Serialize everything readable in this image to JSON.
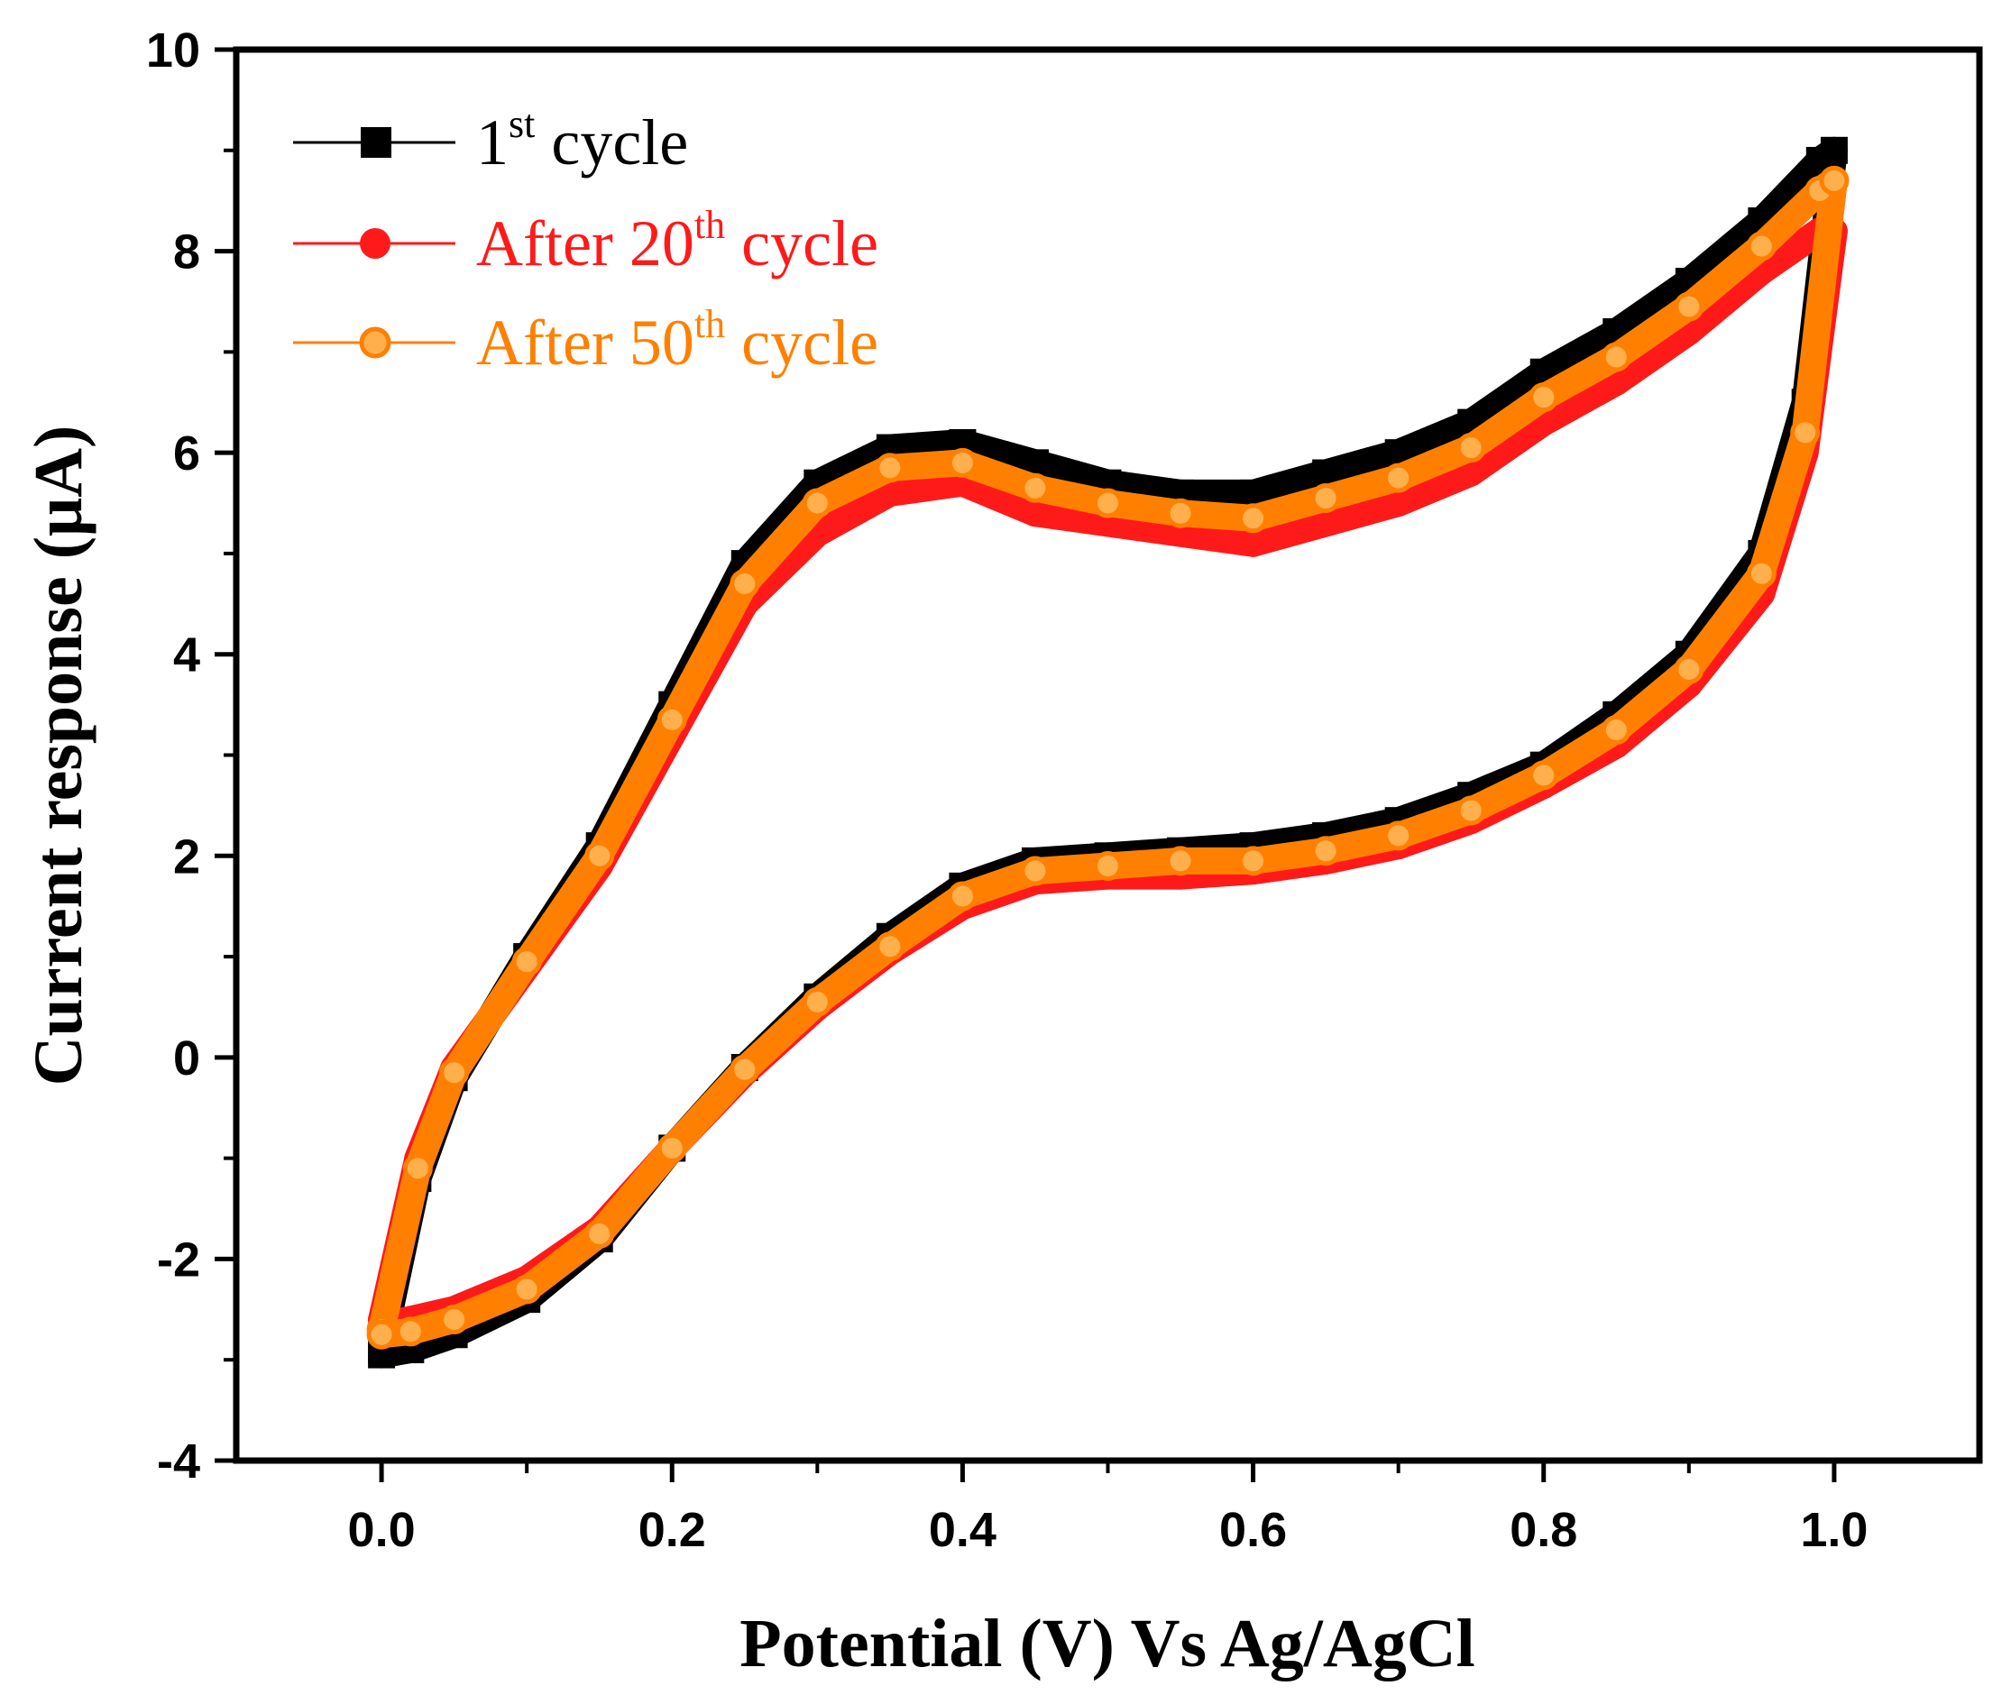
{
  "chart_data": {
    "type": "line",
    "title": "",
    "xlabel": "Potential (V) Vs Ag/AgCl",
    "ylabel": "Current response (μA)",
    "xlim": [
      -0.1,
      1.1
    ],
    "ylim": [
      -4,
      10
    ],
    "xticks": [
      0.0,
      0.2,
      0.4,
      0.6,
      0.8,
      1.0
    ],
    "xtick_labels": [
      "0.0",
      "0.2",
      "0.4",
      "0.6",
      "0.8",
      "1.0"
    ],
    "yticks": [
      -4,
      -2,
      0,
      2,
      4,
      6,
      8,
      10
    ],
    "ytick_labels": [
      "-4",
      "-2",
      "0",
      "2",
      "4",
      "6",
      "8",
      "10"
    ],
    "legend_position": "top-left",
    "series": [
      {
        "name": "1st cycle",
        "label_base": "1",
        "label_sup": "st",
        "label_rest": " cycle",
        "color": "#000000",
        "marker": "square",
        "x": [
          0.0,
          0.025,
          0.05,
          0.1,
          0.15,
          0.2,
          0.25,
          0.3,
          0.35,
          0.4,
          0.45,
          0.5,
          0.55,
          0.6,
          0.65,
          0.7,
          0.75,
          0.8,
          0.85,
          0.9,
          0.95,
          0.99,
          1.0,
          0.98,
          0.95,
          0.9,
          0.85,
          0.8,
          0.75,
          0.7,
          0.65,
          0.6,
          0.55,
          0.5,
          0.45,
          0.4,
          0.35,
          0.3,
          0.25,
          0.2,
          0.15,
          0.1,
          0.05,
          0.02,
          0.0
        ],
        "y": [
          -2.9,
          -1.2,
          -0.2,
          1.0,
          2.1,
          3.5,
          4.9,
          5.7,
          6.05,
          6.1,
          5.9,
          5.7,
          5.6,
          5.6,
          5.8,
          6.0,
          6.3,
          6.8,
          7.2,
          7.7,
          8.3,
          8.9,
          9.0,
          6.5,
          5.0,
          4.0,
          3.4,
          2.9,
          2.6,
          2.35,
          2.2,
          2.1,
          2.05,
          2.0,
          1.95,
          1.7,
          1.2,
          0.6,
          -0.1,
          -0.9,
          -1.8,
          -2.4,
          -2.75,
          -2.9,
          -2.95
        ]
      },
      {
        "name": "After 20th cycle",
        "label_base": "After 20",
        "label_sup": "th",
        "label_rest": " cycle",
        "color": "#ff1a1a",
        "marker": "circle",
        "x": [
          0.0,
          0.025,
          0.05,
          0.1,
          0.15,
          0.2,
          0.25,
          0.3,
          0.35,
          0.4,
          0.45,
          0.5,
          0.55,
          0.6,
          0.65,
          0.7,
          0.75,
          0.8,
          0.85,
          0.9,
          0.95,
          0.99,
          1.0,
          0.98,
          0.95,
          0.9,
          0.85,
          0.8,
          0.75,
          0.7,
          0.65,
          0.6,
          0.55,
          0.5,
          0.45,
          0.4,
          0.35,
          0.3,
          0.25,
          0.2,
          0.15,
          0.1,
          0.05,
          0.02,
          0.0
        ],
        "y": [
          -2.6,
          -1.0,
          -0.1,
          0.9,
          1.9,
          3.2,
          4.5,
          5.2,
          5.6,
          5.7,
          5.4,
          5.3,
          5.2,
          5.1,
          5.3,
          5.5,
          5.8,
          6.3,
          6.7,
          7.2,
          7.8,
          8.2,
          8.2,
          6.0,
          4.6,
          3.7,
          3.1,
          2.7,
          2.35,
          2.1,
          1.95,
          1.85,
          1.8,
          1.8,
          1.75,
          1.5,
          1.05,
          0.5,
          -0.15,
          -0.9,
          -1.7,
          -2.2,
          -2.5,
          -2.6,
          -2.65
        ]
      },
      {
        "name": "After 50th cycle",
        "label_base": "After 50",
        "label_sup": "th",
        "label_rest": " cycle",
        "color": "#ff8000",
        "marker": "circle-open",
        "x": [
          0.0,
          0.025,
          0.05,
          0.1,
          0.15,
          0.2,
          0.25,
          0.3,
          0.35,
          0.4,
          0.45,
          0.5,
          0.55,
          0.6,
          0.65,
          0.7,
          0.75,
          0.8,
          0.85,
          0.9,
          0.95,
          0.99,
          1.0,
          0.98,
          0.95,
          0.9,
          0.85,
          0.8,
          0.75,
          0.7,
          0.65,
          0.6,
          0.55,
          0.5,
          0.45,
          0.4,
          0.35,
          0.3,
          0.25,
          0.2,
          0.15,
          0.1,
          0.05,
          0.02,
          0.0
        ],
        "y": [
          -2.7,
          -1.1,
          -0.15,
          0.95,
          2.0,
          3.35,
          4.7,
          5.5,
          5.85,
          5.9,
          5.65,
          5.5,
          5.4,
          5.35,
          5.55,
          5.75,
          6.05,
          6.55,
          6.95,
          7.45,
          8.05,
          8.6,
          8.7,
          6.2,
          4.8,
          3.85,
          3.25,
          2.8,
          2.45,
          2.2,
          2.05,
          1.95,
          1.95,
          1.9,
          1.85,
          1.6,
          1.1,
          0.55,
          -0.12,
          -0.9,
          -1.75,
          -2.3,
          -2.6,
          -2.72,
          -2.75
        ]
      }
    ]
  }
}
